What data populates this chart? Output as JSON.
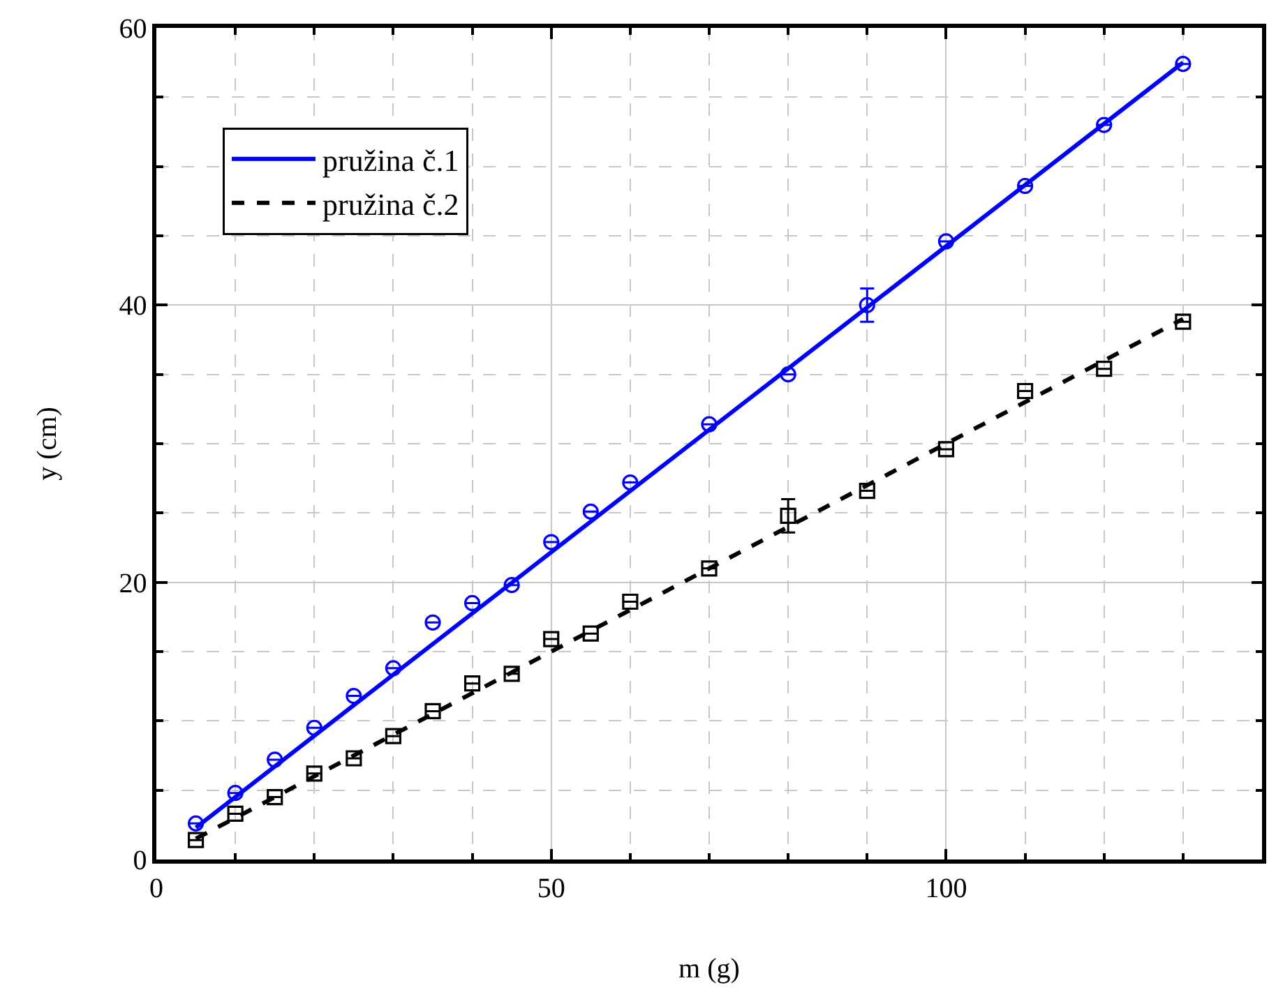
{
  "chart_data": {
    "type": "scatter",
    "xlabel": "m (g)",
    "ylabel": "y (cm)",
    "xlim": [
      0,
      140
    ],
    "ylim": [
      0,
      60
    ],
    "xticks": [
      0,
      {
        "value": 10,
        "label": null
      },
      {
        "value": 20,
        "label": null
      },
      {
        "value": 30,
        "label": null
      },
      {
        "value": 40,
        "label": null
      },
      50,
      {
        "value": 60,
        "label": null
      },
      {
        "value": 70,
        "label": null
      },
      {
        "value": 80,
        "label": null
      },
      {
        "value": 90,
        "label": null
      },
      100,
      {
        "value": 110,
        "label": null
      },
      {
        "value": 120,
        "label": null
      },
      {
        "value": 130,
        "label": null
      }
    ],
    "yticks": [
      0,
      {
        "value": 5,
        "label": null
      },
      {
        "value": 10,
        "label": null
      },
      {
        "value": 15,
        "label": null
      },
      20,
      {
        "value": 25,
        "label": null
      },
      {
        "value": 30,
        "label": null
      },
      {
        "value": 35,
        "label": null
      },
      40,
      {
        "value": 45,
        "label": null
      },
      {
        "value": 50,
        "label": null
      },
      {
        "value": 55,
        "label": null
      },
      60
    ],
    "grid": true,
    "legend": "top left",
    "series": [
      {
        "marker": "circle",
        "color": "#0000ff",
        "x": [
          5,
          10,
          15,
          20,
          25,
          30,
          35,
          40,
          45,
          50,
          55,
          60,
          70,
          80,
          90,
          100,
          110,
          120,
          130
        ],
        "values": [
          2.6,
          4.8,
          7.2,
          9.5,
          11.8,
          13.8,
          17.1,
          18.5,
          19.8,
          22.9,
          25.1,
          27.2,
          31.4,
          35.0,
          40.0,
          44.6,
          48.6,
          53.0,
          57.4
        ],
        "errors": [
          null,
          null,
          null,
          null,
          null,
          null,
          null,
          null,
          null,
          null,
          null,
          null,
          null,
          null,
          1.2,
          null,
          null,
          null,
          null
        ]
      },
      {
        "marker": "square",
        "color": "#000000",
        "x": [
          5,
          10,
          15,
          20,
          25,
          30,
          35,
          40,
          45,
          50,
          55,
          60,
          70,
          80,
          90,
          100,
          110,
          120,
          130
        ],
        "values": [
          1.4,
          3.3,
          4.5,
          6.2,
          7.3,
          8.9,
          10.7,
          12.7,
          13.4,
          15.9,
          16.3,
          18.6,
          21.0,
          24.8,
          26.6,
          29.6,
          33.8,
          35.4,
          38.8
        ],
        "errors": [
          null,
          null,
          null,
          null,
          null,
          null,
          null,
          null,
          null,
          null,
          null,
          null,
          null,
          1.2,
          null,
          null,
          null,
          null,
          null
        ]
      },
      {
        "type": "line",
        "name": "pružina č.1",
        "color": "#0000ff",
        "line_style": "solid",
        "x": [
          5,
          130
        ],
        "values": [
          2.3,
          57.5
        ]
      },
      {
        "type": "line",
        "name": "pružina č.2",
        "color": "#000000",
        "line_style": "dashed",
        "x": [
          5,
          130
        ],
        "values": [
          1.5,
          39.0
        ]
      }
    ]
  }
}
